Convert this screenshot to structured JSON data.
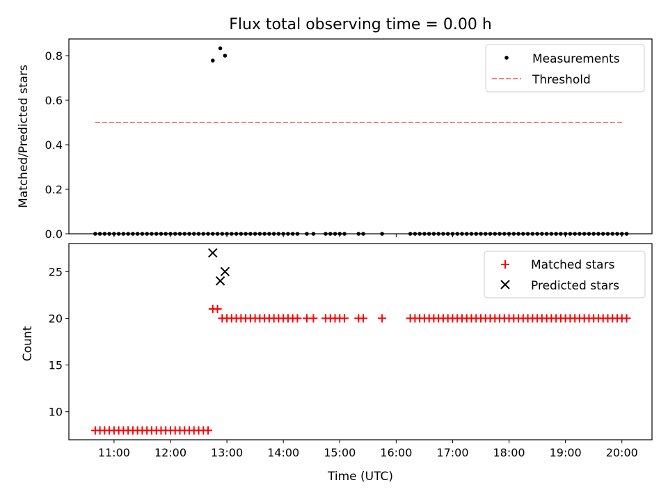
{
  "chart_data": [
    {
      "type": "scatter",
      "title": "Flux total observing time = 0.00 h",
      "xlabel": "",
      "ylabel": "Matched/Predicted stars",
      "xlim": [
        "10:12",
        "20:32"
      ],
      "ylim": [
        0,
        0.875
      ],
      "yticks": [
        "0.0",
        "0.2",
        "0.4",
        "0.6",
        "0.8"
      ],
      "legend_position": "top-right",
      "series": [
        {
          "name": "Measurements",
          "marker": "dot",
          "color": "#000000",
          "x": [
            "10:40",
            "10:45",
            "10:50",
            "10:55",
            "11:00",
            "11:05",
            "11:10",
            "11:15",
            "11:20",
            "11:25",
            "11:30",
            "11:35",
            "11:40",
            "11:45",
            "11:50",
            "11:55",
            "12:00",
            "12:05",
            "12:10",
            "12:15",
            "12:20",
            "12:25",
            "12:30",
            "12:35",
            "12:40",
            "12:45",
            "12:50",
            "12:55",
            "13:00",
            "13:05",
            "13:10",
            "13:15",
            "13:20",
            "13:25",
            "13:30",
            "13:35",
            "13:40",
            "13:45",
            "13:50",
            "13:55",
            "14:00",
            "14:05",
            "14:10",
            "14:15",
            "14:25",
            "14:32",
            "14:45",
            "14:50",
            "14:55",
            "15:00",
            "15:05",
            "15:20",
            "15:25",
            "15:45",
            "16:15",
            "16:20",
            "16:25",
            "16:30",
            "16:35",
            "16:40",
            "16:45",
            "16:50",
            "16:55",
            "17:00",
            "17:05",
            "17:10",
            "17:15",
            "17:20",
            "17:25",
            "17:30",
            "17:35",
            "17:40",
            "17:45",
            "17:50",
            "17:55",
            "18:00",
            "18:05",
            "18:10",
            "18:15",
            "18:20",
            "18:25",
            "18:30",
            "18:35",
            "18:40",
            "18:45",
            "18:50",
            "18:55",
            "19:00",
            "19:05",
            "19:10",
            "19:15",
            "19:20",
            "19:25",
            "19:30",
            "19:35",
            "19:40",
            "19:45",
            "19:50",
            "19:55",
            "20:00",
            "20:05",
            "12:45",
            "12:53",
            "12:58"
          ],
          "y": [
            0,
            0,
            0,
            0,
            0,
            0,
            0,
            0,
            0,
            0,
            0,
            0,
            0,
            0,
            0,
            0,
            0,
            0,
            0,
            0,
            0,
            0,
            0,
            0,
            0,
            0,
            0,
            0,
            0,
            0,
            0,
            0,
            0,
            0,
            0,
            0,
            0,
            0,
            0,
            0,
            0,
            0,
            0,
            0,
            0,
            0,
            0,
            0,
            0,
            0,
            0,
            0,
            0,
            0,
            0,
            0,
            0,
            0,
            0,
            0,
            0,
            0,
            0,
            0,
            0,
            0,
            0,
            0,
            0,
            0,
            0,
            0,
            0,
            0,
            0,
            0,
            0,
            0,
            0,
            0,
            0,
            0,
            0,
            0,
            0,
            0,
            0,
            0,
            0,
            0,
            0,
            0,
            0,
            0,
            0,
            0,
            0,
            0,
            0,
            0,
            0,
            0.778,
            0.833,
            0.8
          ]
        },
        {
          "name": "Threshold",
          "marker": "dashed-line",
          "color": "#ff7f7f",
          "x": [
            "10:40",
            "20:02"
          ],
          "y": [
            0.5,
            0.5
          ]
        }
      ]
    },
    {
      "type": "scatter",
      "title": "",
      "xlabel": "Time (UTC)",
      "ylabel": "Count",
      "xlim": [
        "10:12",
        "20:32"
      ],
      "ylim": [
        7,
        28
      ],
      "yticks": [
        "10",
        "15",
        "20",
        "25"
      ],
      "xticks": [
        "11:00",
        "12:00",
        "13:00",
        "14:00",
        "15:00",
        "16:00",
        "17:00",
        "18:00",
        "19:00",
        "20:00"
      ],
      "legend_position": "top-right",
      "series": [
        {
          "name": "Matched stars",
          "marker": "plus",
          "color": "#ff0000",
          "x": [
            "10:40",
            "10:45",
            "10:50",
            "10:55",
            "11:00",
            "11:05",
            "11:10",
            "11:15",
            "11:20",
            "11:25",
            "11:30",
            "11:35",
            "11:40",
            "11:45",
            "11:50",
            "11:55",
            "12:00",
            "12:05",
            "12:10",
            "12:15",
            "12:20",
            "12:25",
            "12:30",
            "12:35",
            "12:40",
            "12:45",
            "12:50",
            "12:55",
            "13:00",
            "13:05",
            "13:10",
            "13:15",
            "13:20",
            "13:25",
            "13:30",
            "13:35",
            "13:40",
            "13:45",
            "13:50",
            "13:55",
            "14:00",
            "14:05",
            "14:10",
            "14:15",
            "14:25",
            "14:32",
            "14:45",
            "14:50",
            "14:55",
            "15:00",
            "15:05",
            "15:20",
            "15:25",
            "15:45",
            "16:15",
            "16:20",
            "16:25",
            "16:30",
            "16:35",
            "16:40",
            "16:45",
            "16:50",
            "16:55",
            "17:00",
            "17:05",
            "17:10",
            "17:15",
            "17:20",
            "17:25",
            "17:30",
            "17:35",
            "17:40",
            "17:45",
            "17:50",
            "17:55",
            "18:00",
            "18:05",
            "18:10",
            "18:15",
            "18:20",
            "18:25",
            "18:30",
            "18:35",
            "18:40",
            "18:45",
            "18:50",
            "18:55",
            "19:00",
            "19:05",
            "19:10",
            "19:15",
            "19:20",
            "19:25",
            "19:30",
            "19:35",
            "19:40",
            "19:45",
            "19:50",
            "19:55",
            "20:00",
            "20:05"
          ],
          "y": [
            8,
            8,
            8,
            8,
            8,
            8,
            8,
            8,
            8,
            8,
            8,
            8,
            8,
            8,
            8,
            8,
            8,
            8,
            8,
            8,
            8,
            8,
            8,
            8,
            8,
            21,
            21,
            20,
            20,
            20,
            20,
            20,
            20,
            20,
            20,
            20,
            20,
            20,
            20,
            20,
            20,
            20,
            20,
            20,
            20,
            20,
            20,
            20,
            20,
            20,
            20,
            20,
            20,
            20,
            20,
            20,
            20,
            20,
            20,
            20,
            20,
            20,
            20,
            20,
            20,
            20,
            20,
            20,
            20,
            20,
            20,
            20,
            20,
            20,
            20,
            20,
            20,
            20,
            20,
            20,
            20,
            20,
            20,
            20,
            20,
            20,
            20,
            20,
            20,
            20,
            20,
            20,
            20,
            20,
            20,
            20,
            20,
            20,
            20,
            20,
            20
          ]
        },
        {
          "name": "Predicted stars",
          "marker": "x",
          "color": "#000000",
          "x": [
            "12:45",
            "12:53",
            "12:58"
          ],
          "y": [
            27,
            24,
            25
          ]
        }
      ]
    }
  ]
}
